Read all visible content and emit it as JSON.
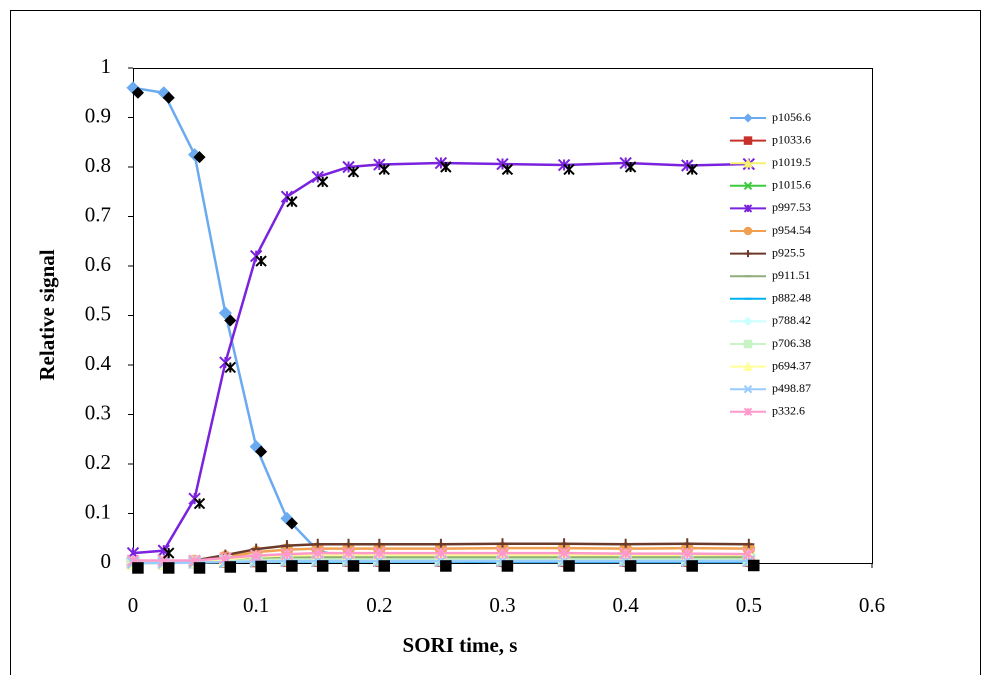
{
  "chart_data": {
    "type": "line",
    "x_label": "SORI time, s",
    "y_label": "Relative signal",
    "x": [
      0,
      0.025,
      0.05,
      0.075,
      0.1,
      0.125,
      0.15,
      0.175,
      0.2,
      0.25,
      0.3,
      0.35,
      0.4,
      0.45,
      0.5
    ],
    "xlim": [
      0,
      0.6
    ],
    "xticks": [
      0,
      0.1,
      0.2,
      0.3,
      0.4,
      0.5,
      0.6
    ],
    "ylim": [
      0,
      1
    ],
    "yticks": [
      0,
      0.1,
      0.2,
      0.3,
      0.4,
      0.5,
      0.6,
      0.7,
      0.8,
      0.9,
      1
    ],
    "legend": "right",
    "series": [
      {
        "name": "p1056.6",
        "color": "#6aaaf0",
        "marker": "diamond",
        "values": [
          0.96,
          0.95,
          0.825,
          0.505,
          0.235,
          0.09,
          0.025,
          0.01,
          0.005,
          0.003,
          0.002,
          0.002,
          0.002,
          0.002,
          0.002
        ]
      },
      {
        "name": "p1033.6",
        "color": "#c8302a",
        "marker": "square",
        "values": [
          0,
          0,
          0.002,
          0.003,
          0.004,
          0.005,
          0.005,
          0.005,
          0.005,
          0.005,
          0.005,
          0.005,
          0.005,
          0.005,
          0.005
        ]
      },
      {
        "name": "p1019.5",
        "color": "#f5f070",
        "marker": "triangle",
        "values": [
          0,
          0,
          0.003,
          0.006,
          0.01,
          0.012,
          0.013,
          0.013,
          0.013,
          0.013,
          0.013,
          0.013,
          0.013,
          0.013,
          0.013
        ]
      },
      {
        "name": "p1015.6",
        "color": "#3ec83e",
        "marker": "x",
        "values": [
          0,
          0,
          0.002,
          0.004,
          0.006,
          0.007,
          0.008,
          0.008,
          0.008,
          0.008,
          0.008,
          0.008,
          0.008,
          0.008,
          0.008
        ]
      },
      {
        "name": "p997.53",
        "color": "#7a22dd",
        "marker": "asterisk",
        "values": [
          0.02,
          0.025,
          0.13,
          0.405,
          0.62,
          0.74,
          0.78,
          0.8,
          0.805,
          0.808,
          0.806,
          0.804,
          0.808,
          0.803,
          0.806
        ]
      },
      {
        "name": "p954.54",
        "color": "#f0a050",
        "marker": "circle",
        "values": [
          0,
          0,
          0.004,
          0.012,
          0.022,
          0.027,
          0.029,
          0.029,
          0.029,
          0.029,
          0.03,
          0.03,
          0.029,
          0.03,
          0.029
        ]
      },
      {
        "name": "p925.5",
        "color": "#6b3a2a",
        "marker": "plus",
        "values": [
          0,
          0,
          0.005,
          0.016,
          0.028,
          0.035,
          0.038,
          0.038,
          0.038,
          0.038,
          0.039,
          0.039,
          0.038,
          0.039,
          0.038
        ]
      },
      {
        "name": "p911.51",
        "color": "#8fae7a",
        "marker": "dash",
        "values": [
          0,
          0,
          0.002,
          0.005,
          0.008,
          0.01,
          0.011,
          0.011,
          0.011,
          0.011,
          0.011,
          0.011,
          0.011,
          0.011,
          0.011
        ]
      },
      {
        "name": "p882.48",
        "color": "#00b0f0",
        "marker": "dash",
        "values": [
          0,
          0,
          0.001,
          0.002,
          0.003,
          0.003,
          0.003,
          0.003,
          0.003,
          0.003,
          0.003,
          0.003,
          0.003,
          0.003,
          0.003
        ]
      },
      {
        "name": "p788.42",
        "color": "#c8ffff",
        "marker": "diamond",
        "values": [
          0,
          0,
          0.001,
          0.003,
          0.004,
          0.005,
          0.005,
          0.005,
          0.005,
          0.005,
          0.005,
          0.005,
          0.005,
          0.005,
          0.005
        ]
      },
      {
        "name": "p706.38",
        "color": "#c8f5c8",
        "marker": "square",
        "values": [
          0,
          0,
          0.002,
          0.004,
          0.006,
          0.007,
          0.007,
          0.007,
          0.007,
          0.007,
          0.007,
          0.007,
          0.007,
          0.007,
          0.007
        ]
      },
      {
        "name": "p694.37",
        "color": "#ffff99",
        "marker": "triangle",
        "values": [
          0,
          0,
          0.003,
          0.008,
          0.013,
          0.016,
          0.017,
          0.017,
          0.017,
          0.017,
          0.017,
          0.017,
          0.017,
          0.017,
          0.017
        ]
      },
      {
        "name": "p498.87",
        "color": "#99ccff",
        "marker": "x",
        "values": [
          0,
          0,
          0.001,
          0.002,
          0.003,
          0.004,
          0.004,
          0.004,
          0.004,
          0.004,
          0.004,
          0.004,
          0.004,
          0.004,
          0.004
        ]
      },
      {
        "name": "p332.6",
        "color": "#ff99cc",
        "marker": "asterisk",
        "values": [
          0.005,
          0.005,
          0.005,
          0.01,
          0.015,
          0.018,
          0.02,
          0.02,
          0.02,
          0.02,
          0.02,
          0.02,
          0.019,
          0.019,
          0.018
        ]
      },
      {
        "color": "#000000",
        "marker": "diamond",
        "line": false,
        "x": [
          0.004,
          0.029,
          0.054,
          0.079,
          0.104,
          0.129
        ],
        "values": [
          0.95,
          0.94,
          0.82,
          0.49,
          0.225,
          0.08
        ]
      },
      {
        "color": "#000000",
        "marker": "asterisk",
        "line": false,
        "x": [
          0.029,
          0.054,
          0.079,
          0.104,
          0.129,
          0.154,
          0.179,
          0.204,
          0.254,
          0.304,
          0.354,
          0.404,
          0.454
        ],
        "values": [
          0.02,
          0.12,
          0.395,
          0.61,
          0.73,
          0.77,
          0.79,
          0.795,
          0.8,
          0.795,
          0.795,
          0.8,
          0.795
        ]
      },
      {
        "color": "#000000",
        "marker": "square",
        "line": false,
        "x": [
          0.004,
          0.029,
          0.054,
          0.079,
          0.104,
          0.129,
          0.154,
          0.179,
          0.204,
          0.254,
          0.304,
          0.354,
          0.404,
          0.454,
          0.504
        ],
        "values": [
          -0.01,
          -0.01,
          -0.01,
          -0.008,
          -0.007,
          -0.006,
          -0.006,
          -0.006,
          -0.006,
          -0.006,
          -0.006,
          -0.006,
          -0.006,
          -0.006,
          -0.005
        ]
      }
    ]
  }
}
